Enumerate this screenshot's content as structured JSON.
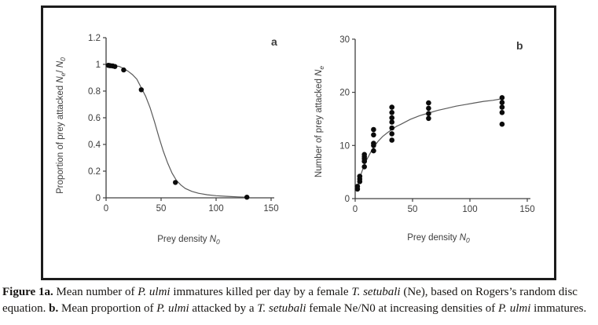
{
  "figure": {
    "caption_segments": [
      {
        "text": "Figure 1a.",
        "bold": true
      },
      {
        "text": " Mean number of "
      },
      {
        "text": "P. ulmi",
        "italic": true
      },
      {
        "text": " immatures killed per day by a female "
      },
      {
        "text": "T. setubali",
        "italic": true
      },
      {
        "text": " (Ne), based on Rogers’s random disc equation. "
      },
      {
        "text": "b.",
        "bold": true
      },
      {
        "text": " Mean proportion of "
      },
      {
        "text": "P. ulmi",
        "italic": true
      },
      {
        "text": " attacked by a "
      },
      {
        "text": "T. setubali",
        "italic": true
      },
      {
        "text": " female Ne/N0 at increasing densities of "
      },
      {
        "text": "P. ulmi",
        "italic": true
      },
      {
        "text": " immatures."
      }
    ]
  },
  "chart_data": [
    {
      "id": "a",
      "type": "scatter",
      "panel_label": "a",
      "title": "",
      "xlabel_parts": [
        {
          "text": "Prey density ",
          "italic": false
        },
        {
          "text": "N",
          "italic": true
        },
        {
          "text": "0",
          "italic": true,
          "sub": true
        }
      ],
      "ylabel_parts": [
        {
          "text": "Proportion of prey attacked ",
          "italic": false
        },
        {
          "text": "N",
          "italic": true
        },
        {
          "text": "e",
          "italic": true,
          "sub": true
        },
        {
          "text": "/ ",
          "italic": false
        },
        {
          "text": "N",
          "italic": true
        },
        {
          "text": "0",
          "italic": true,
          "sub": true
        }
      ],
      "xlim": [
        0,
        150
      ],
      "ylim": [
        0,
        1.2
      ],
      "xticks": [
        0,
        50,
        100,
        150
      ],
      "xtick_labels": [
        "0",
        "50",
        "100",
        "150"
      ],
      "yticks": [
        0,
        0.2,
        0.4,
        0.6,
        0.8,
        1,
        1.2
      ],
      "ytick_labels": [
        "0",
        "0.2",
        "0.4",
        "0.6",
        "0.8",
        "1",
        "1.2"
      ],
      "grid": false,
      "legend": "none",
      "points": [
        [
          2,
          0.993
        ],
        [
          3,
          0.991
        ],
        [
          4,
          0.99
        ],
        [
          6,
          0.988
        ],
        [
          8,
          0.984
        ],
        [
          16,
          0.958
        ],
        [
          32,
          0.81
        ],
        [
          63,
          0.115
        ],
        [
          128,
          0.005
        ]
      ],
      "curve": [
        [
          0,
          0.995
        ],
        [
          6,
          0.992
        ],
        [
          12,
          0.985
        ],
        [
          16,
          0.968
        ],
        [
          20,
          0.949
        ],
        [
          24,
          0.923
        ],
        [
          28,
          0.888
        ],
        [
          32,
          0.825
        ],
        [
          36,
          0.76
        ],
        [
          40,
          0.675
        ],
        [
          44,
          0.57
        ],
        [
          48,
          0.455
        ],
        [
          52,
          0.35
        ],
        [
          56,
          0.26
        ],
        [
          60,
          0.185
        ],
        [
          64,
          0.13
        ],
        [
          68,
          0.096
        ],
        [
          72,
          0.07
        ],
        [
          78,
          0.048
        ],
        [
          84,
          0.034
        ],
        [
          92,
          0.023
        ],
        [
          100,
          0.016
        ],
        [
          110,
          0.011
        ],
        [
          120,
          0.007
        ],
        [
          128,
          0.005
        ]
      ],
      "colors": {
        "point": "#0b0b0b",
        "curve": "#5a5a5a",
        "axis": "#404040",
        "text": "#3c3c3c"
      }
    },
    {
      "id": "b",
      "type": "scatter",
      "panel_label": "b",
      "title": "",
      "xlabel_parts": [
        {
          "text": "Prey density ",
          "italic": false
        },
        {
          "text": "N",
          "italic": true
        },
        {
          "text": "0",
          "italic": true,
          "sub": true
        }
      ],
      "ylabel_parts": [
        {
          "text": "Number of prey attacked ",
          "italic": false
        },
        {
          "text": "N",
          "italic": true
        },
        {
          "text": "e",
          "italic": true,
          "sub": true
        }
      ],
      "xlim": [
        0,
        150
      ],
      "ylim": [
        0,
        30
      ],
      "xticks": [
        0,
        50,
        100,
        150
      ],
      "xtick_labels": [
        "0",
        "50",
        "100",
        "150"
      ],
      "yticks": [
        0,
        10,
        20,
        30
      ],
      "ytick_labels": [
        "0",
        "10",
        "20",
        "30"
      ],
      "grid": false,
      "legend": "none",
      "points": [
        [
          2,
          1.8
        ],
        [
          2,
          2.3
        ],
        [
          4,
          3.2
        ],
        [
          4,
          3.7
        ],
        [
          4,
          4.2
        ],
        [
          8,
          6.0
        ],
        [
          8,
          7.0
        ],
        [
          8,
          7.5
        ],
        [
          8,
          7.9
        ],
        [
          8,
          8.3
        ],
        [
          16,
          9.0
        ],
        [
          16,
          10.0
        ],
        [
          16,
          10.4
        ],
        [
          16,
          12.0
        ],
        [
          16,
          13.0
        ],
        [
          32,
          11.0
        ],
        [
          32,
          12.2
        ],
        [
          32,
          13.3
        ],
        [
          32,
          14.4
        ],
        [
          32,
          15.2
        ],
        [
          32,
          16.2
        ],
        [
          32,
          17.2
        ],
        [
          64,
          15.1
        ],
        [
          64,
          16.0
        ],
        [
          64,
          17.0
        ],
        [
          64,
          18.0
        ],
        [
          128,
          14.0
        ],
        [
          128,
          16.2
        ],
        [
          128,
          17.2
        ],
        [
          128,
          18.1
        ],
        [
          128,
          19.0
        ]
      ],
      "curve": [
        [
          1.5,
          1.6
        ],
        [
          3,
          2.9
        ],
        [
          4,
          3.8
        ],
        [
          5,
          4.5
        ],
        [
          6,
          5.2
        ],
        [
          8,
          6.3
        ],
        [
          10,
          7.3
        ],
        [
          12,
          8.1
        ],
        [
          14,
          8.9
        ],
        [
          16,
          9.6
        ],
        [
          18,
          10.2
        ],
        [
          20,
          10.8
        ],
        [
          24,
          11.7
        ],
        [
          28,
          12.4
        ],
        [
          32,
          13.0
        ],
        [
          36,
          13.6
        ],
        [
          40,
          14.0
        ],
        [
          48,
          14.9
        ],
        [
          56,
          15.6
        ],
        [
          64,
          16.1
        ],
        [
          72,
          16.6
        ],
        [
          80,
          17.0
        ],
        [
          88,
          17.4
        ],
        [
          96,
          17.7
        ],
        [
          104,
          18.0
        ],
        [
          112,
          18.3
        ],
        [
          120,
          18.5
        ],
        [
          128,
          18.8
        ]
      ],
      "colors": {
        "point": "#0b0b0b",
        "curve": "#5a5a5a",
        "axis": "#404040",
        "text": "#3c3c3c"
      }
    }
  ]
}
